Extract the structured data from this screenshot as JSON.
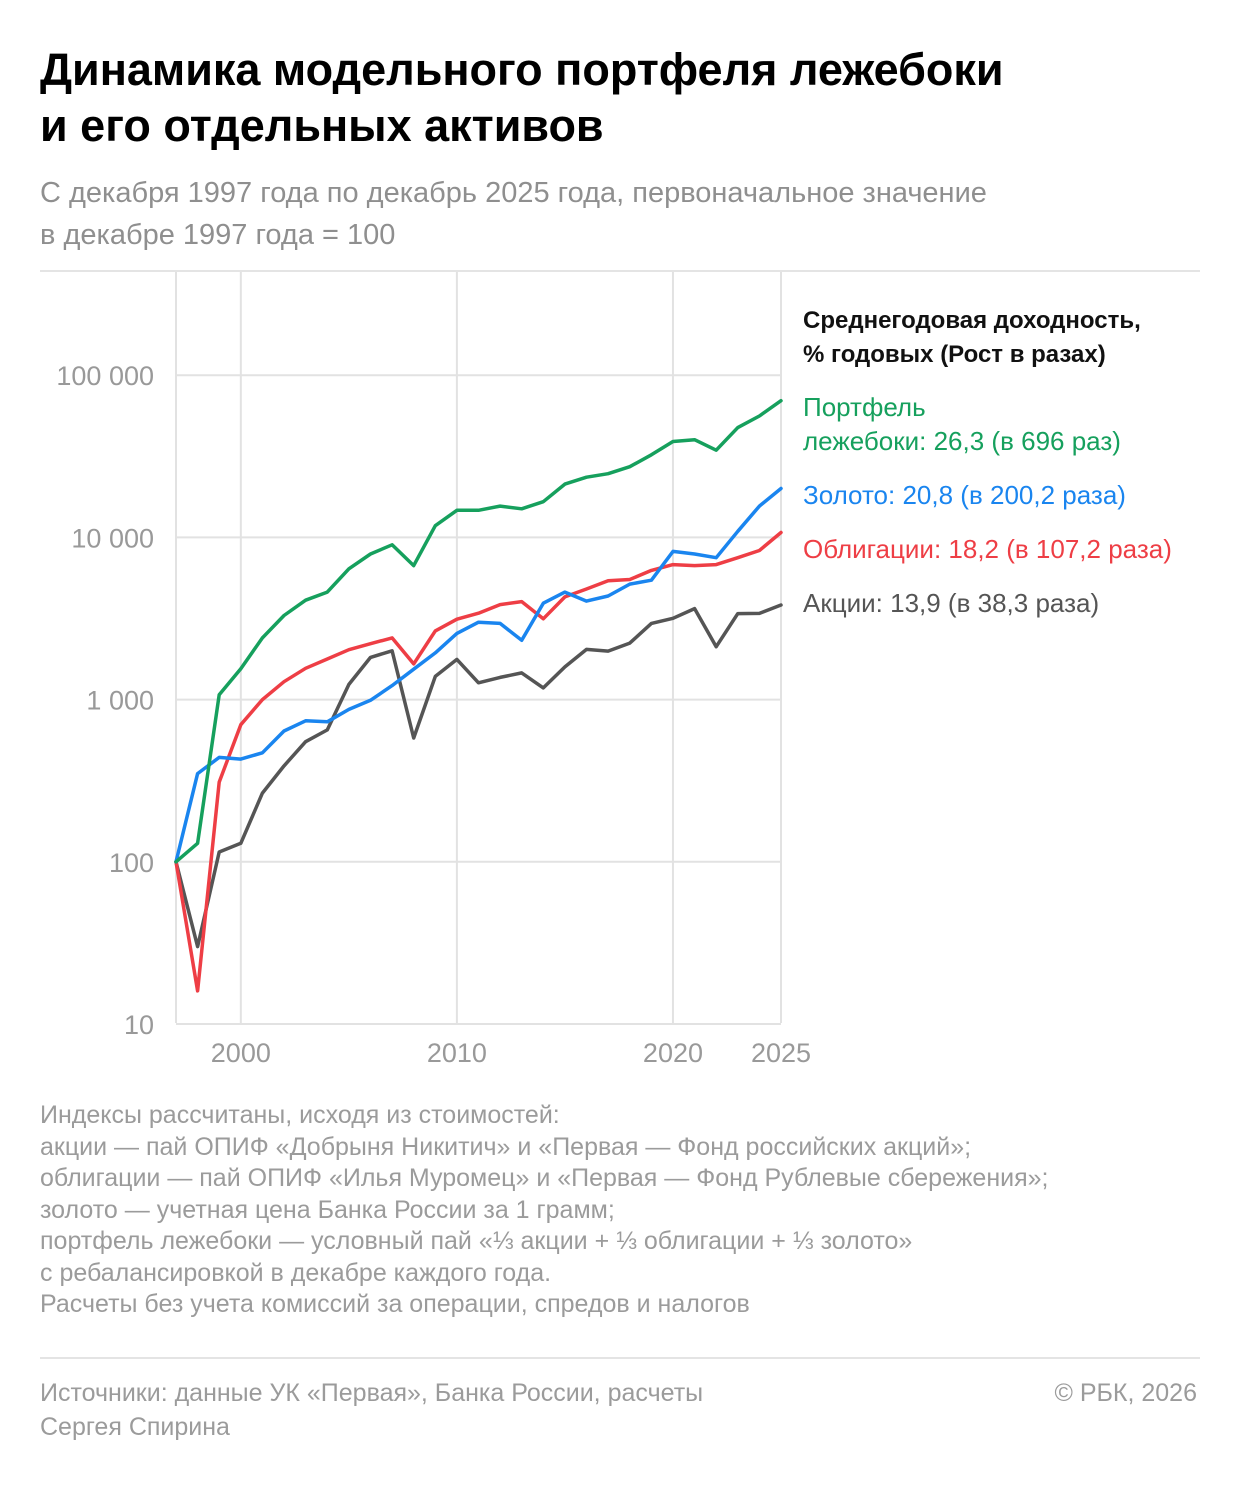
{
  "title_lines": [
    "Динамика модельного портфеля лежебоки",
    "и его отдельных активов"
  ],
  "subtitle_lines": [
    "С декабря 1997 года по декабрь 2025 года, первоначальное значение",
    "в декабре 1997 года = 100"
  ],
  "legend": {
    "title_lines": [
      "Среднегодовая доходность,",
      "% годовых (Рост в разах)"
    ],
    "entries": [
      {
        "lines": [
          "Портфель",
          "лежебоки: 26,3 (в 696 раз)"
        ],
        "color": "#16a05d"
      },
      {
        "lines": [
          "Золото: 20,8 (в 200,2 раза)"
        ],
        "color": "#1a85ef"
      },
      {
        "lines": [
          "Облигации: 18,2 (в 107,2 раза)"
        ],
        "color": "#ee3e45"
      },
      {
        "lines": [
          "Акции: 13,9 (в 38,3 раза)"
        ],
        "color": "#555555"
      }
    ]
  },
  "notes_lines": [
    "Индексы рассчитаны, исходя из стоимостей:",
    "акции — пай ОПИФ «Добрыня Никитич» и «Первая — Фонд российских акций»;",
    "облигации — пай ОПИФ «Илья Муромец» и «Первая — Фонд Рублевые сбережения»;",
    "золото — учетная цена Банка России за 1 грамм;",
    "портфель лежебоки — условный пай «⅓ акции + ⅓ облигации + ⅓ золото»",
    "с ребалансировкой в декабре каждого года.",
    "Расчеты без учета комиссий за операции, спредов и налогов"
  ],
  "sources_lines": [
    "Источники: данные УК «Первая», Банка России, расчеты",
    "Сергея Спирина"
  ],
  "copyright": "© РБК, 2026",
  "colors": {
    "portfolio": "#16a05d",
    "gold": "#1a85ef",
    "bonds": "#ee3e45",
    "stocks": "#555555",
    "grid": "#e2e2e2",
    "axis_text": "#999999"
  },
  "chart_data": {
    "type": "line",
    "title": "",
    "xlabel": "",
    "ylabel": "",
    "y_scale": "log",
    "xlim": [
      1997,
      2025
    ],
    "ylim": [
      10,
      300000
    ],
    "grid": true,
    "legend_position": "right",
    "y_ticks": [
      10,
      100,
      1000,
      10000,
      100000
    ],
    "y_tick_labels": [
      "10",
      "100",
      "1 000",
      "10 000",
      "100 000"
    ],
    "x_ticks": [
      2000,
      2010,
      2020,
      2025
    ],
    "x_tick_labels": [
      "2000",
      "2010",
      "2020",
      "2025"
    ],
    "x": [
      1997,
      1998,
      1999,
      2000,
      2001,
      2002,
      2003,
      2004,
      2005,
      2006,
      2007,
      2008,
      2009,
      2010,
      2011,
      2012,
      2013,
      2014,
      2015,
      2016,
      2017,
      2018,
      2019,
      2020,
      2021,
      2022,
      2023,
      2024,
      2025
    ],
    "series": [
      {
        "key": "portfolio",
        "values": [
          100,
          130,
          1070,
          1550,
          2400,
          3300,
          4100,
          4600,
          6400,
          7900,
          9000,
          6700,
          11800,
          14700,
          14700,
          15600,
          15000,
          16600,
          21300,
          23500,
          24700,
          27300,
          32300,
          39000,
          40000,
          34500,
          47500,
          56000,
          69600
        ]
      },
      {
        "key": "gold",
        "values": [
          100,
          350,
          440,
          430,
          470,
          640,
          740,
          730,
          870,
          990,
          1220,
          1540,
          1940,
          2560,
          3000,
          2950,
          2320,
          3930,
          4600,
          4050,
          4350,
          5150,
          5450,
          8200,
          7900,
          7500,
          10900,
          15600,
          20020
        ]
      },
      {
        "key": "bonds",
        "values": [
          100,
          16,
          310,
          700,
          1000,
          1290,
          1560,
          1780,
          2030,
          2210,
          2400,
          1660,
          2650,
          3130,
          3410,
          3850,
          4020,
          3150,
          4300,
          4810,
          5400,
          5500,
          6260,
          6800,
          6700,
          6800,
          7500,
          8300,
          10720
        ]
      },
      {
        "key": "stocks",
        "values": [
          100,
          30,
          115,
          130,
          265,
          390,
          550,
          650,
          1240,
          1820,
          2000,
          580,
          1390,
          1770,
          1270,
          1370,
          1460,
          1180,
          1590,
          2040,
          1990,
          2230,
          2950,
          3170,
          3640,
          2120,
          3390,
          3400,
          3830
        ]
      }
    ]
  }
}
